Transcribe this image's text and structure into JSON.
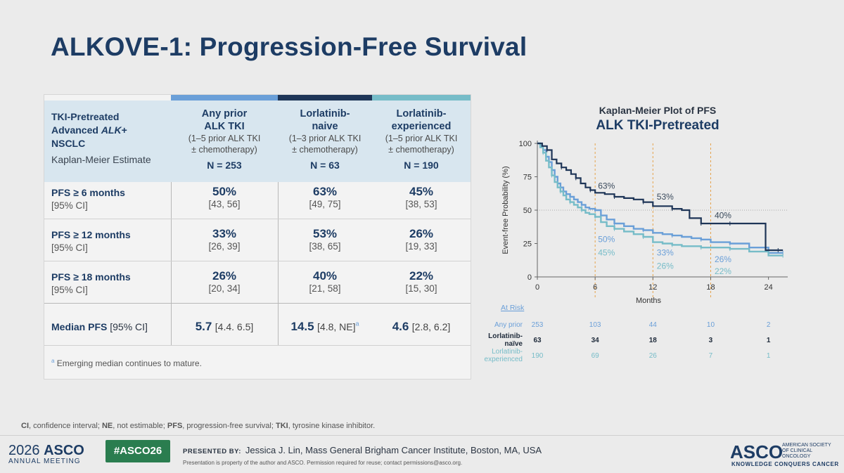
{
  "title": "ALKOVE-1: Progression-Free Survival",
  "colors": {
    "any_prior": "#6a9fd8",
    "naive": "#1e3557",
    "experienced": "#76bcc8",
    "title": "#1d3c64"
  },
  "table": {
    "row_header": {
      "line1": "TKI-Pretreated",
      "line2a": "Advanced ",
      "line2b": "ALK",
      "line2c": "+",
      "line3": "NSCLC",
      "line4": "Kaplan-Meier Estimate"
    },
    "columns": [
      {
        "head1": "Any prior",
        "head2": "ALK TKI",
        "sub1": "(1–5 prior ALK TKI",
        "sub2": "± chemotherapy)",
        "n": "N = 253"
      },
      {
        "head1": "Lorlatinib-",
        "head2": "naive",
        "sub1": "(1–3 prior ALK TKI",
        "sub2": "± chemotherapy)",
        "n": "N = 63"
      },
      {
        "head1": "Lorlatinib-",
        "head2": "experienced",
        "sub1": "(1–5 prior ALK TKI",
        "sub2": "± chemotherapy)",
        "n": "N = 190"
      }
    ],
    "rows": [
      {
        "label": "PFS ≥ 6 months",
        "sub": "[95% CI]",
        "cells": [
          {
            "v": "50%",
            "ci": "[43, 56]"
          },
          {
            "v": "63%",
            "ci": "[49, 75]"
          },
          {
            "v": "45%",
            "ci": "[38, 53]"
          }
        ]
      },
      {
        "label": "PFS ≥ 12 months",
        "sub": "[95% CI]",
        "cells": [
          {
            "v": "33%",
            "ci": "[26, 39]"
          },
          {
            "v": "53%",
            "ci": "[38, 65]"
          },
          {
            "v": "26%",
            "ci": "[19, 33]"
          }
        ]
      },
      {
        "label": "PFS ≥ 18 months",
        "sub": "[95% CI]",
        "cells": [
          {
            "v": "26%",
            "ci": "[20, 34]"
          },
          {
            "v": "40%",
            "ci": "[21, 58]"
          },
          {
            "v": "22%",
            "ci": "[15, 30]"
          }
        ]
      }
    ],
    "median": {
      "label": "Median PFS",
      "label_sub": "[95% CI]",
      "cells": [
        {
          "v": "5.7",
          "ci": "[4.4. 6.5]",
          "sup": ""
        },
        {
          "v": "14.5",
          "ci": "[4.8, NE]",
          "sup": "a"
        },
        {
          "v": "4.6",
          "ci": "[2.8, 6.2]",
          "sup": ""
        }
      ]
    },
    "footnote_sup": "a",
    "footnote": "Emerging median continues to mature."
  },
  "chart_data": {
    "type": "line",
    "title": "Kaplan-Meier Plot of PFS",
    "subtitle": "ALK TKI-Pretreated",
    "xlabel": "Months",
    "ylabel": "Event-free Probability (%)",
    "xlim": [
      0,
      26
    ],
    "ylim": [
      0,
      100
    ],
    "xticks": [
      0,
      6,
      12,
      18,
      24
    ],
    "yticks": [
      0,
      25,
      50,
      75,
      100
    ],
    "reference_lines": {
      "x": [
        6,
        12,
        18
      ],
      "y": [
        50
      ]
    },
    "series": [
      {
        "name": "Any prior",
        "color_key": "any_prior",
        "x": [
          0,
          0.3,
          0.6,
          0.9,
          1.2,
          1.5,
          1.8,
          2.1,
          2.4,
          2.7,
          3.0,
          3.4,
          3.8,
          4.2,
          4.6,
          5.0,
          5.4,
          6.0,
          6.6,
          7.2,
          8.0,
          9.0,
          10.0,
          11.0,
          12.0,
          13.0,
          14.0,
          15.0,
          16.0,
          17.0,
          18.0,
          19.0,
          20.0,
          22.0,
          24.0,
          25.5
        ],
        "y": [
          100,
          98,
          95,
          90,
          86,
          80,
          75,
          70,
          67,
          64,
          62,
          60,
          58,
          56,
          54,
          52,
          51,
          50,
          46,
          43,
          40,
          38,
          36,
          35,
          33,
          32,
          31,
          30,
          29,
          28,
          26,
          26,
          25,
          22,
          18,
          18
        ]
      },
      {
        "name": "Lorlatinib-naïve",
        "color_key": "naive",
        "x": [
          0,
          0.5,
          1.0,
          1.5,
          2.0,
          2.5,
          3.0,
          3.5,
          4.0,
          4.5,
          5.0,
          5.5,
          6.0,
          7.0,
          8.0,
          9.0,
          10.0,
          11.0,
          12.0,
          13.0,
          14.0,
          15.0,
          15.8,
          17.0,
          18.0,
          19.0,
          20.0,
          22.0,
          23.7,
          25.0,
          25.5
        ],
        "y": [
          100,
          98,
          95,
          88,
          85,
          82,
          80,
          77,
          74,
          70,
          67,
          65,
          63,
          62,
          60,
          59,
          58,
          56,
          53,
          53,
          51,
          50,
          44,
          40,
          40,
          40,
          40,
          40,
          20,
          20,
          20
        ]
      },
      {
        "name": "Lorlatinib-experienced",
        "color_key": "experienced",
        "x": [
          0,
          0.3,
          0.6,
          0.9,
          1.2,
          1.5,
          1.8,
          2.1,
          2.4,
          2.7,
          3.0,
          3.4,
          3.8,
          4.2,
          4.6,
          5.0,
          5.4,
          6.0,
          6.6,
          7.2,
          8.0,
          9.0,
          10.0,
          11.0,
          12.0,
          13.0,
          14.0,
          15.0,
          16.0,
          17.0,
          18.0,
          19.0,
          20.0,
          22.0,
          24.0,
          25.5
        ],
        "y": [
          100,
          97,
          93,
          87,
          82,
          76,
          71,
          67,
          64,
          61,
          58,
          56,
          54,
          52,
          50,
          48,
          47,
          45,
          41,
          38,
          36,
          34,
          32,
          30,
          26,
          25,
          24,
          23,
          23,
          22,
          22,
          22,
          21,
          19,
          16,
          16
        ]
      }
    ],
    "annotations": [
      {
        "text": "63%",
        "x": 6.3,
        "y": 66,
        "color_key": "naive"
      },
      {
        "text": "53%",
        "x": 12.4,
        "y": 58,
        "color_key": "naive"
      },
      {
        "text": "40%",
        "x": 18.4,
        "y": 44,
        "color_key": "naive"
      },
      {
        "text": "50%",
        "x": 6.3,
        "y": 26,
        "color_key": "any_prior"
      },
      {
        "text": "45%",
        "x": 6.3,
        "y": 16,
        "color_key": "experienced"
      },
      {
        "text": "33%",
        "x": 12.4,
        "y": 16,
        "color_key": "any_prior"
      },
      {
        "text": "26%",
        "x": 12.4,
        "y": 6,
        "color_key": "experienced"
      },
      {
        "text": "26%",
        "x": 18.4,
        "y": 11,
        "color_key": "any_prior"
      },
      {
        "text": "22%",
        "x": 18.4,
        "y": 2,
        "color_key": "experienced"
      }
    ],
    "at_risk": {
      "title": "At Risk",
      "times": [
        0,
        6,
        12,
        18,
        24
      ],
      "rows": [
        {
          "label": "Any prior",
          "color_key": "any_prior",
          "values": [
            "253",
            "103",
            "44",
            "10",
            "2"
          ]
        },
        {
          "label": "Lorlatinib-naïve",
          "color_key": "naive",
          "values": [
            "63",
            "34",
            "18",
            "3",
            "1"
          ]
        },
        {
          "label": "Lorlatinib-experienced",
          "color_key": "experienced",
          "values": [
            "190",
            "69",
            "26",
            "7",
            "1"
          ]
        }
      ]
    }
  },
  "footer": {
    "abbrev": [
      {
        "b": "CI",
        "t": ", confidence interval; "
      },
      {
        "b": "NE",
        "t": ", not estimable; "
      },
      {
        "b": "PFS",
        "t": ", progression-free survival; "
      },
      {
        "b": "TKI",
        "t": ", tyrosine kinase inhibitor."
      }
    ],
    "year": "2026",
    "asco": "ASCO",
    "annual": "ANNUAL MEETING",
    "hashtag": "#ASCO26",
    "presented_label": "PRESENTED BY:",
    "presenter": "Jessica J. Lin, Mass General Brigham Cancer Institute, Boston, MA, USA",
    "disclaimer": "Presentation is property of the author and ASCO. Permission required for reuse; contact permissions@asco.org.",
    "logo": "ASCO",
    "org": "AMERICAN SOCIETY OF CLINICAL ONCOLOGY",
    "tagline": "KNOWLEDGE CONQUERS CANCER"
  }
}
